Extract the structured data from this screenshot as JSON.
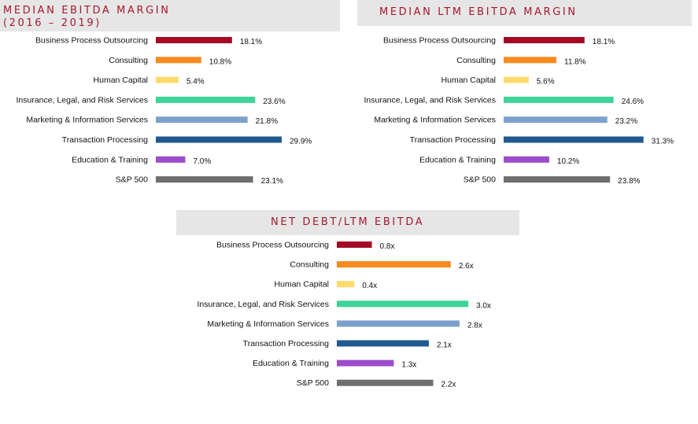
{
  "chart_data": [
    {
      "id": "ebitda_margin",
      "type": "bar",
      "orientation": "horizontal",
      "title": [
        "MEDIAN EBITDA MARGIN",
        "(2016 – 2019)"
      ],
      "categories": [
        "Business Process Outsourcing",
        "Consulting",
        "Human Capital",
        "Insurance, Legal, and Risk Services",
        "Marketing & Information Services",
        "Transaction Processing",
        "Education & Training",
        "S&P 500"
      ],
      "values": [
        18.1,
        10.8,
        5.4,
        23.6,
        21.8,
        29.9,
        7.0,
        23.1
      ],
      "value_labels": [
        "18.1%",
        "10.8%",
        "5.4%",
        "23.6%",
        "21.8%",
        "29.9%",
        "7.0%",
        "23.1%"
      ],
      "xlim": [
        0,
        32
      ],
      "grid": false
    },
    {
      "id": "ltm_ebitda_margin",
      "type": "bar",
      "orientation": "horizontal",
      "title": [
        "MEDIAN LTM EBITDA MARGIN"
      ],
      "categories": [
        "Business Process Outsourcing",
        "Consulting",
        "Human Capital",
        "Insurance, Legal, and Risk Services",
        "Marketing & Information Services",
        "Transaction Processing",
        "Education & Training",
        "S&P 500"
      ],
      "values": [
        18.1,
        11.8,
        5.6,
        24.6,
        23.2,
        31.3,
        10.2,
        23.8
      ],
      "value_labels": [
        "18.1%",
        "11.8%",
        "5.6%",
        "24.6%",
        "23.2%",
        "31.3%",
        "10.2%",
        "23.8%"
      ],
      "xlim": [
        0,
        32
      ],
      "grid": false
    },
    {
      "id": "net_debt_ebitda",
      "type": "bar",
      "orientation": "horizontal",
      "title": [
        "NET DEBT/LTM EBITDA"
      ],
      "categories": [
        "Business Process Outsourcing",
        "Consulting",
        "Human Capital",
        "Insurance, Legal, and Risk Services",
        "Marketing & Information Services",
        "Transaction Processing",
        "Education & Training",
        "S&P 500"
      ],
      "values": [
        0.8,
        2.6,
        0.4,
        3.0,
        2.8,
        2.1,
        1.3,
        2.2
      ],
      "value_labels": [
        "0.8x",
        "2.6x",
        "0.4x",
        "3.0x",
        "2.8x",
        "2.1x",
        "1.3x",
        "2.2x"
      ],
      "xlim": [
        0,
        3.2
      ],
      "grid": false
    }
  ],
  "colors": [
    "#a50b24",
    "#f68b1f",
    "#fddb6d",
    "#3ed398",
    "#7da1cc",
    "#1e5a8e",
    "#9b4dcc",
    "#6e6e6e"
  ],
  "title_color": "#a6192e",
  "title_background": "#e6e6e6"
}
